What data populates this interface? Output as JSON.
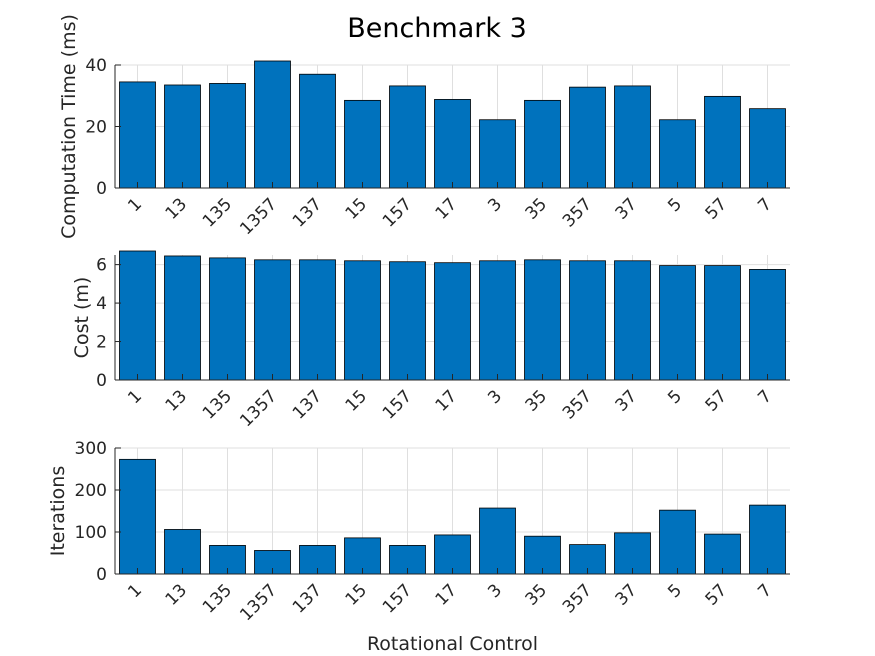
{
  "title": "Benchmark 3",
  "colors": {
    "bar": "#0072BD",
    "bar_edge": "#000000",
    "grid": "#dfdfdf",
    "axis": "#262626"
  },
  "chart_data": [
    {
      "type": "bar",
      "categories": [
        "1",
        "13",
        "135",
        "1357",
        "137",
        "15",
        "157",
        "17",
        "3",
        "35",
        "357",
        "37",
        "5",
        "57",
        "7"
      ],
      "values": [
        34.5,
        33.5,
        34,
        41.5,
        37,
        28.5,
        33.2,
        28.8,
        22.2,
        28.5,
        32.8,
        33.2,
        22.2,
        29.8,
        25.8
      ],
      "ylabel": "Computation Time (ms)",
      "ylim": [
        0,
        40
      ],
      "yticks": [
        0,
        20,
        40
      ],
      "grid": true
    },
    {
      "type": "bar",
      "categories": [
        "1",
        "13",
        "135",
        "1357",
        "137",
        "15",
        "157",
        "17",
        "3",
        "35",
        "357",
        "37",
        "5",
        "57",
        "7"
      ],
      "values": [
        6.75,
        6.45,
        6.35,
        6.25,
        6.25,
        6.2,
        6.15,
        6.1,
        6.2,
        6.25,
        6.2,
        6.2,
        5.95,
        5.95,
        5.75
      ],
      "ylabel": "Cost (m)",
      "ylim": [
        0,
        6.5
      ],
      "yticks": [
        0,
        2,
        4,
        6
      ],
      "grid": true
    },
    {
      "type": "bar",
      "categories": [
        "1",
        "13",
        "135",
        "1357",
        "137",
        "15",
        "157",
        "17",
        "3",
        "35",
        "357",
        "37",
        "5",
        "57",
        "7"
      ],
      "values": [
        273,
        106,
        68,
        56,
        68,
        86,
        68,
        93,
        157,
        90,
        70,
        98,
        152,
        95,
        164
      ],
      "ylabel": "Iterations",
      "xlabel": "Rotational Control",
      "ylim": [
        0,
        300
      ],
      "yticks": [
        0,
        100,
        200,
        300
      ],
      "grid": true
    }
  ]
}
